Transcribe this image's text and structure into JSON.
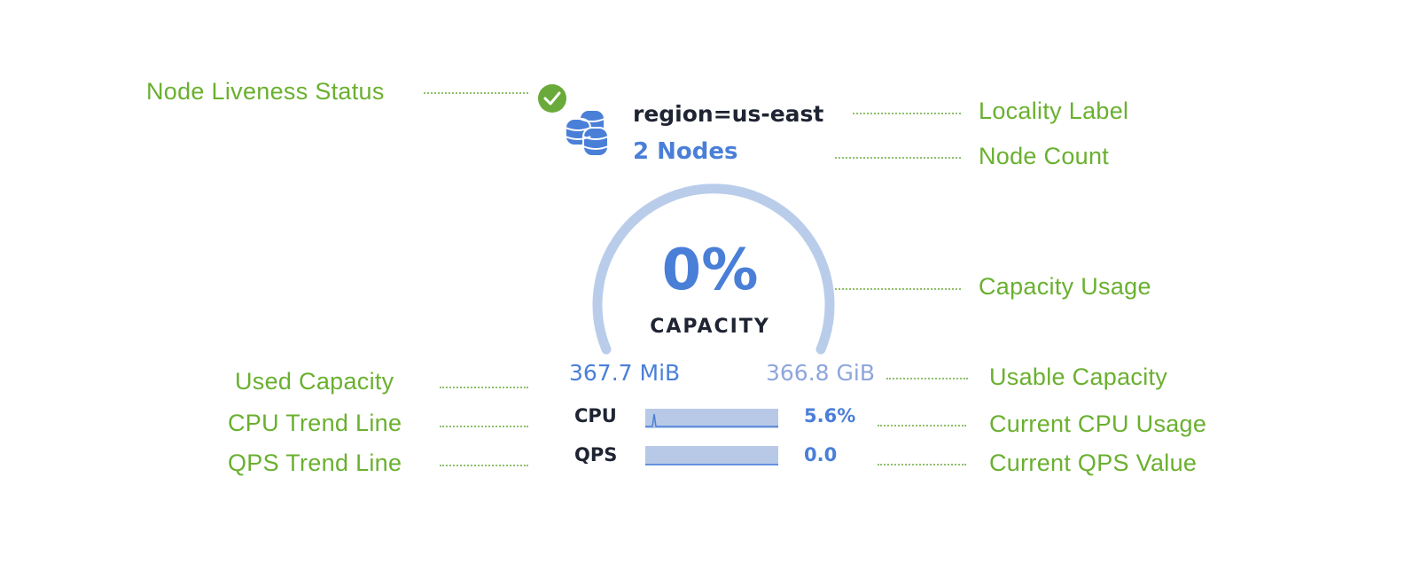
{
  "widget": {
    "locality": "region=us-east",
    "node_count": "2 Nodes",
    "capacity_percent": "0%",
    "capacity_label": "CAPACITY",
    "capacity_fraction": 0.0,
    "used_capacity": "367.7 MiB",
    "usable_capacity": "366.8 GiB",
    "cpu_label": "CPU",
    "cpu_value": "5.6%",
    "qps_label": "QPS",
    "qps_value": "0.0",
    "status_icon": "check-circle-icon",
    "node_icon": "database-stack-icon"
  },
  "annotations": {
    "liveness": "Node Liveness Status",
    "locality": "Locality Label",
    "node_count": "Node Count",
    "capacity_usage": "Capacity Usage",
    "used_capacity": "Used Capacity",
    "usable_capacity": "Usable Capacity",
    "cpu_trend": "CPU Trend Line",
    "cpu_current": "Current CPU Usage",
    "qps_trend": "QPS Trend Line",
    "qps_current": "Current QPS Value"
  },
  "colors": {
    "annotation": "#6ab02f",
    "accent": "#4a7fd8",
    "gauge_track": "#b9cdea",
    "status_ok": "#6aaa3a"
  }
}
